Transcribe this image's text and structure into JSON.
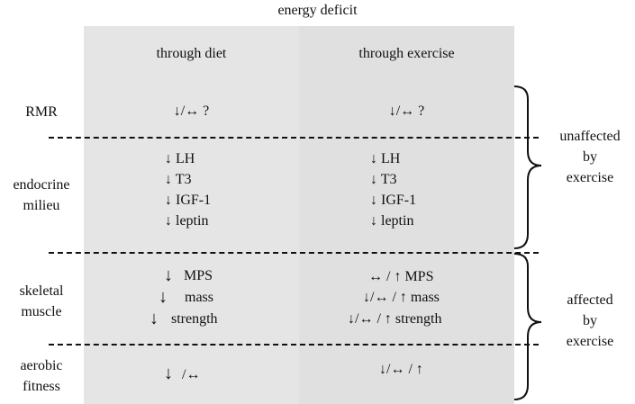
{
  "title": "energy deficit",
  "columns": {
    "diet": "through diet",
    "exercise": "through exercise"
  },
  "rows": {
    "rmr": {
      "label": "RMR",
      "diet": "↓/↔ ?",
      "exercise": "↓/↔ ?"
    },
    "endocrine": {
      "label_1": "endocrine",
      "label_2": "milieu",
      "diet": [
        "↓  LH",
        "↓  T3",
        "↓  IGF-1",
        "↓  leptin"
      ],
      "exercise": [
        "↓  LH",
        "↓  T3",
        "↓  IGF-1",
        "↓  leptin"
      ]
    },
    "skeletal": {
      "label_1": "skeletal",
      "label_2": "muscle",
      "diet_arrow": "↓",
      "diet_text": [
        "MPS",
        "mass",
        "strength"
      ],
      "exercise": [
        "↔ / ↑  MPS",
        "↓/↔ / ↑ mass",
        "↓/↔ / ↑  strength"
      ]
    },
    "aerobic": {
      "label_1": "aerobic",
      "label_2": "fitness",
      "diet_arrow": "↓",
      "diet_rest": "/↔",
      "exercise": "↓/↔ / ↑"
    }
  },
  "side_labels": {
    "unaffected": [
      "unaffected",
      "by",
      "exercise"
    ],
    "affected": [
      "affected",
      "by",
      "exercise"
    ]
  }
}
